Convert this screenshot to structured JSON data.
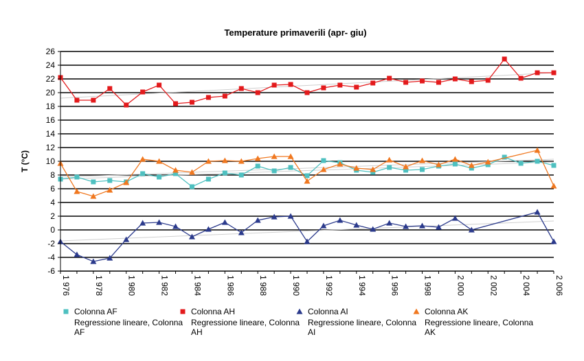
{
  "chart_data": {
    "type": "line",
    "title": "Temperature primaverili (apr-   giu)",
    "ylabel": "T (°C)",
    "xlabel": "",
    "ylim": [
      -6,
      26
    ],
    "yticks": [
      -6,
      -4,
      -2,
      0,
      2,
      4,
      6,
      8,
      10,
      12,
      14,
      16,
      18,
      20,
      22,
      24,
      26
    ],
    "xlim": [
      1976,
      2006
    ],
    "xtick_labels": [
      {
        "year": 1976,
        "label": "1 976"
      },
      {
        "year": 1978,
        "label": "1 978"
      },
      {
        "year": 1980,
        "label": "1 980"
      },
      {
        "year": 1982,
        "label": "1 982"
      },
      {
        "year": 1984,
        "label": "1 984"
      },
      {
        "year": 1986,
        "label": "1 986"
      },
      {
        "year": 1988,
        "label": "1 988"
      },
      {
        "year": 1990,
        "label": "1 990"
      },
      {
        "year": 1992,
        "label": "1 992"
      },
      {
        "year": 1994,
        "label": "1 994"
      },
      {
        "year": 1996,
        "label": "1 996"
      },
      {
        "year": 1998,
        "label": "1 998"
      },
      {
        "year": 2000,
        "label": "2 000"
      },
      {
        "year": 2002,
        "label": "2 002"
      },
      {
        "year": 2004,
        "label": "2 004"
      },
      {
        "year": 2006,
        "label": "2 006"
      }
    ],
    "grid": "horizontal",
    "legend_position": "bottom",
    "series": [
      {
        "name": "Colonna AF",
        "color": "#4EC0C0",
        "marker": "square",
        "points": [
          [
            1976,
            7.4
          ],
          [
            1977,
            7.7
          ],
          [
            1978,
            7.0
          ],
          [
            1979,
            7.2
          ],
          [
            1980,
            7.0
          ],
          [
            1981,
            8.2
          ],
          [
            1982,
            7.7
          ],
          [
            1983,
            8.2
          ],
          [
            1984,
            6.3
          ],
          [
            1985,
            7.4
          ],
          [
            1986,
            8.3
          ],
          [
            1987,
            8.0
          ],
          [
            1988,
            9.3
          ],
          [
            1989,
            8.6
          ],
          [
            1990,
            9.1
          ],
          [
            1991,
            7.9
          ],
          [
            1992,
            10.1
          ],
          [
            1993,
            9.8
          ],
          [
            1994,
            8.7
          ],
          [
            1995,
            8.4
          ],
          [
            1996,
            9.1
          ],
          [
            1997,
            8.7
          ],
          [
            1998,
            8.8
          ],
          [
            1999,
            9.3
          ],
          [
            2000,
            9.6
          ],
          [
            2001,
            9.0
          ],
          [
            2002,
            9.5
          ],
          [
            2003,
            10.6
          ],
          [
            2004,
            9.7
          ],
          [
            2005,
            10.0
          ],
          [
            2006,
            9.4
          ]
        ]
      },
      {
        "name": "Colonna AH",
        "color": "#E31A1C",
        "marker": "square",
        "points": [
          [
            1976,
            22.2
          ],
          [
            1977,
            18.9
          ],
          [
            1978,
            18.9
          ],
          [
            1979,
            20.6
          ],
          [
            1980,
            18.2
          ],
          [
            1981,
            20.1
          ],
          [
            1982,
            21.1
          ],
          [
            1983,
            18.4
          ],
          [
            1984,
            18.6
          ],
          [
            1985,
            19.3
          ],
          [
            1986,
            19.5
          ],
          [
            1987,
            20.6
          ],
          [
            1988,
            20.0
          ],
          [
            1989,
            21.1
          ],
          [
            1990,
            21.2
          ],
          [
            1991,
            20.0
          ],
          [
            1992,
            20.7
          ],
          [
            1993,
            21.1
          ],
          [
            1994,
            20.8
          ],
          [
            1995,
            21.4
          ],
          [
            1996,
            22.1
          ],
          [
            1997,
            21.5
          ],
          [
            1998,
            21.7
          ],
          [
            1999,
            21.5
          ],
          [
            2000,
            22.0
          ],
          [
            2001,
            21.6
          ],
          [
            2002,
            21.8
          ],
          [
            2003,
            24.9
          ],
          [
            2004,
            22.1
          ],
          [
            2005,
            22.9
          ],
          [
            2006,
            22.9
          ]
        ]
      },
      {
        "name": "Colonna AI",
        "color": "#2B3A8C",
        "marker": "triangle",
        "points": [
          [
            1976,
            -1.7
          ],
          [
            1977,
            -3.6
          ],
          [
            1978,
            -4.6
          ],
          [
            1979,
            -4.1
          ],
          [
            1980,
            -1.4
          ],
          [
            1981,
            1.0
          ],
          [
            1982,
            1.1
          ],
          [
            1983,
            0.5
          ],
          [
            1984,
            -1.0
          ],
          [
            1985,
            0.1
          ],
          [
            1986,
            1.1
          ],
          [
            1987,
            -0.4
          ],
          [
            1988,
            1.4
          ],
          [
            1989,
            1.9
          ],
          [
            1990,
            2.0
          ],
          [
            1991,
            -1.7
          ],
          [
            1992,
            0.6
          ],
          [
            1993,
            1.4
          ],
          [
            1994,
            0.7
          ],
          [
            1995,
            0.1
          ],
          [
            1996,
            1.0
          ],
          [
            1997,
            0.5
          ],
          [
            1998,
            0.6
          ],
          [
            1999,
            0.4
          ],
          [
            2000,
            1.7
          ],
          [
            2001,
            0.0
          ],
          [
            2005,
            2.6
          ],
          [
            2006,
            -1.7
          ]
        ]
      },
      {
        "name": "Colonna AK",
        "color": "#F07820",
        "marker": "triangle",
        "points": [
          [
            1976,
            9.7
          ],
          [
            1977,
            5.6
          ],
          [
            1978,
            4.9
          ],
          [
            1979,
            5.8
          ],
          [
            1980,
            6.9
          ],
          [
            1981,
            10.3
          ],
          [
            1982,
            10.0
          ],
          [
            1983,
            8.7
          ],
          [
            1984,
            8.4
          ],
          [
            1985,
            10.0
          ],
          [
            1986,
            10.1
          ],
          [
            1987,
            10.0
          ],
          [
            1988,
            10.4
          ],
          [
            1989,
            10.7
          ],
          [
            1990,
            10.7
          ],
          [
            1991,
            7.1
          ],
          [
            1992,
            8.8
          ],
          [
            1993,
            9.6
          ],
          [
            1994,
            9.0
          ],
          [
            1995,
            8.8
          ],
          [
            1996,
            10.2
          ],
          [
            1997,
            9.2
          ],
          [
            1998,
            10.1
          ],
          [
            1999,
            9.5
          ],
          [
            2000,
            10.3
          ],
          [
            2001,
            9.4
          ],
          [
            2002,
            9.9
          ],
          [
            2005,
            11.6
          ],
          [
            2006,
            6.4
          ]
        ]
      }
    ],
    "regressions": [
      {
        "name": "Regressione lineare, Colonna AF",
        "color": "#CFCFCF",
        "from": [
          1976,
          7.4
        ],
        "to": [
          2006,
          9.9
        ]
      },
      {
        "name": "Regressione lineare, Colonna AH",
        "color": "#CFCFCF",
        "from": [
          1976,
          19.2
        ],
        "to": [
          2006,
          22.9
        ]
      },
      {
        "name": "Regressione lineare, Colonna AI",
        "color": "#CFCFCF",
        "from": [
          1976,
          -1.6
        ],
        "to": [
          2006,
          1.3
        ]
      },
      {
        "name": "Regressione lineare, Colonna AK",
        "color": "#CFCFCF",
        "from": [
          1976,
          7.7
        ],
        "to": [
          2006,
          10.3
        ]
      }
    ]
  }
}
